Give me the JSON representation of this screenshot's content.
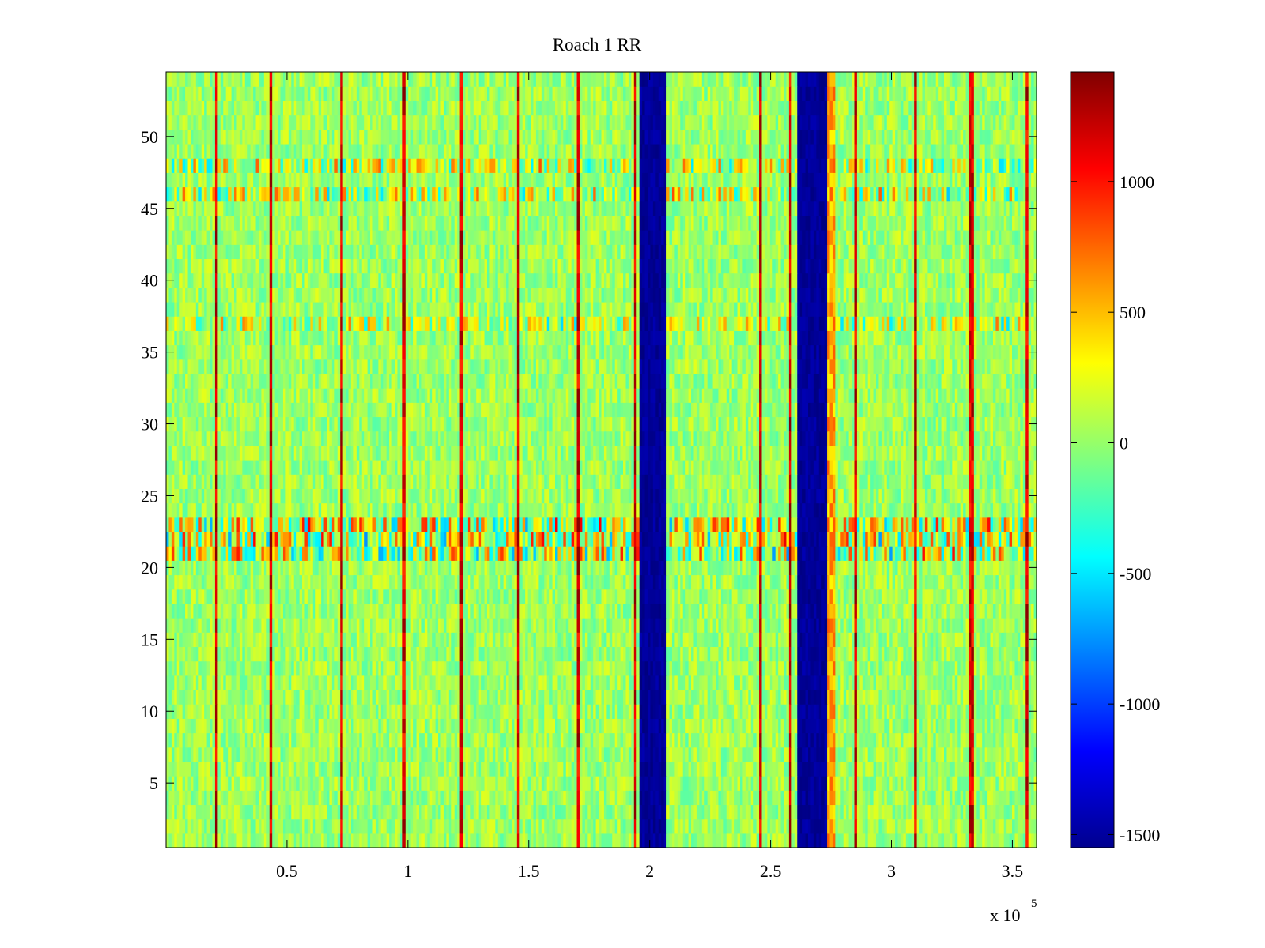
{
  "chart_data": {
    "type": "heatmap",
    "title": "Roach 1 RR",
    "xlabel": "",
    "ylabel": "",
    "x_multiplier_label": "x 10",
    "x_multiplier_exponent": "5",
    "xlim": [
      0,
      360000
    ],
    "ylim": [
      0.5,
      54.5
    ],
    "x_ticks": [
      {
        "value": 50000,
        "label": "0.5"
      },
      {
        "value": 100000,
        "label": "1"
      },
      {
        "value": 150000,
        "label": "1.5"
      },
      {
        "value": 200000,
        "label": "2"
      },
      {
        "value": 250000,
        "label": "2.5"
      },
      {
        "value": 300000,
        "label": "3"
      },
      {
        "value": 350000,
        "label": "3.5"
      }
    ],
    "y_ticks": [
      {
        "value": 5,
        "label": "5"
      },
      {
        "value": 10,
        "label": "10"
      },
      {
        "value": 15,
        "label": "15"
      },
      {
        "value": 20,
        "label": "20"
      },
      {
        "value": 25,
        "label": "25"
      },
      {
        "value": 30,
        "label": "30"
      },
      {
        "value": 35,
        "label": "35"
      },
      {
        "value": 40,
        "label": "40"
      },
      {
        "value": 45,
        "label": "45"
      },
      {
        "value": 50,
        "label": "50"
      }
    ],
    "rows": 54,
    "baseline_value": 0,
    "clim": [
      -1550,
      1420
    ],
    "colormap": "jet",
    "colorbar_ticks": [
      {
        "value": 1000,
        "label": "1000"
      },
      {
        "value": 500,
        "label": "500"
      },
      {
        "value": 0,
        "label": "0"
      },
      {
        "value": -500,
        "label": "-500"
      },
      {
        "value": -1000,
        "label": "-1000"
      },
      {
        "value": -1500,
        "label": "-1500"
      }
    ],
    "low_bands": [
      {
        "x_range": [
          196000,
          207000
        ],
        "value": -1550
      },
      {
        "x_range": [
          261000,
          273000
        ],
        "value": -1550
      }
    ],
    "high_lines_x": [
      21000,
      43000,
      73000,
      98000,
      122000,
      146000,
      170000,
      194000,
      246000,
      258000,
      285000,
      310000,
      333000,
      356000
    ],
    "high_band": {
      "x_range": [
        273000,
        277000
      ],
      "value": 800
    },
    "noisy_rows": [
      {
        "y_range": [
          20.5,
          23.5
        ],
        "amplitude": 1000
      },
      {
        "y_range": [
          45.5,
          46.5
        ],
        "amplitude": 700
      },
      {
        "y_range": [
          47.5,
          48.5
        ],
        "amplitude": 700
      },
      {
        "y_range": [
          36.5,
          37.5
        ],
        "amplitude": 600
      }
    ],
    "grid": false,
    "colorbar_position": "right"
  }
}
